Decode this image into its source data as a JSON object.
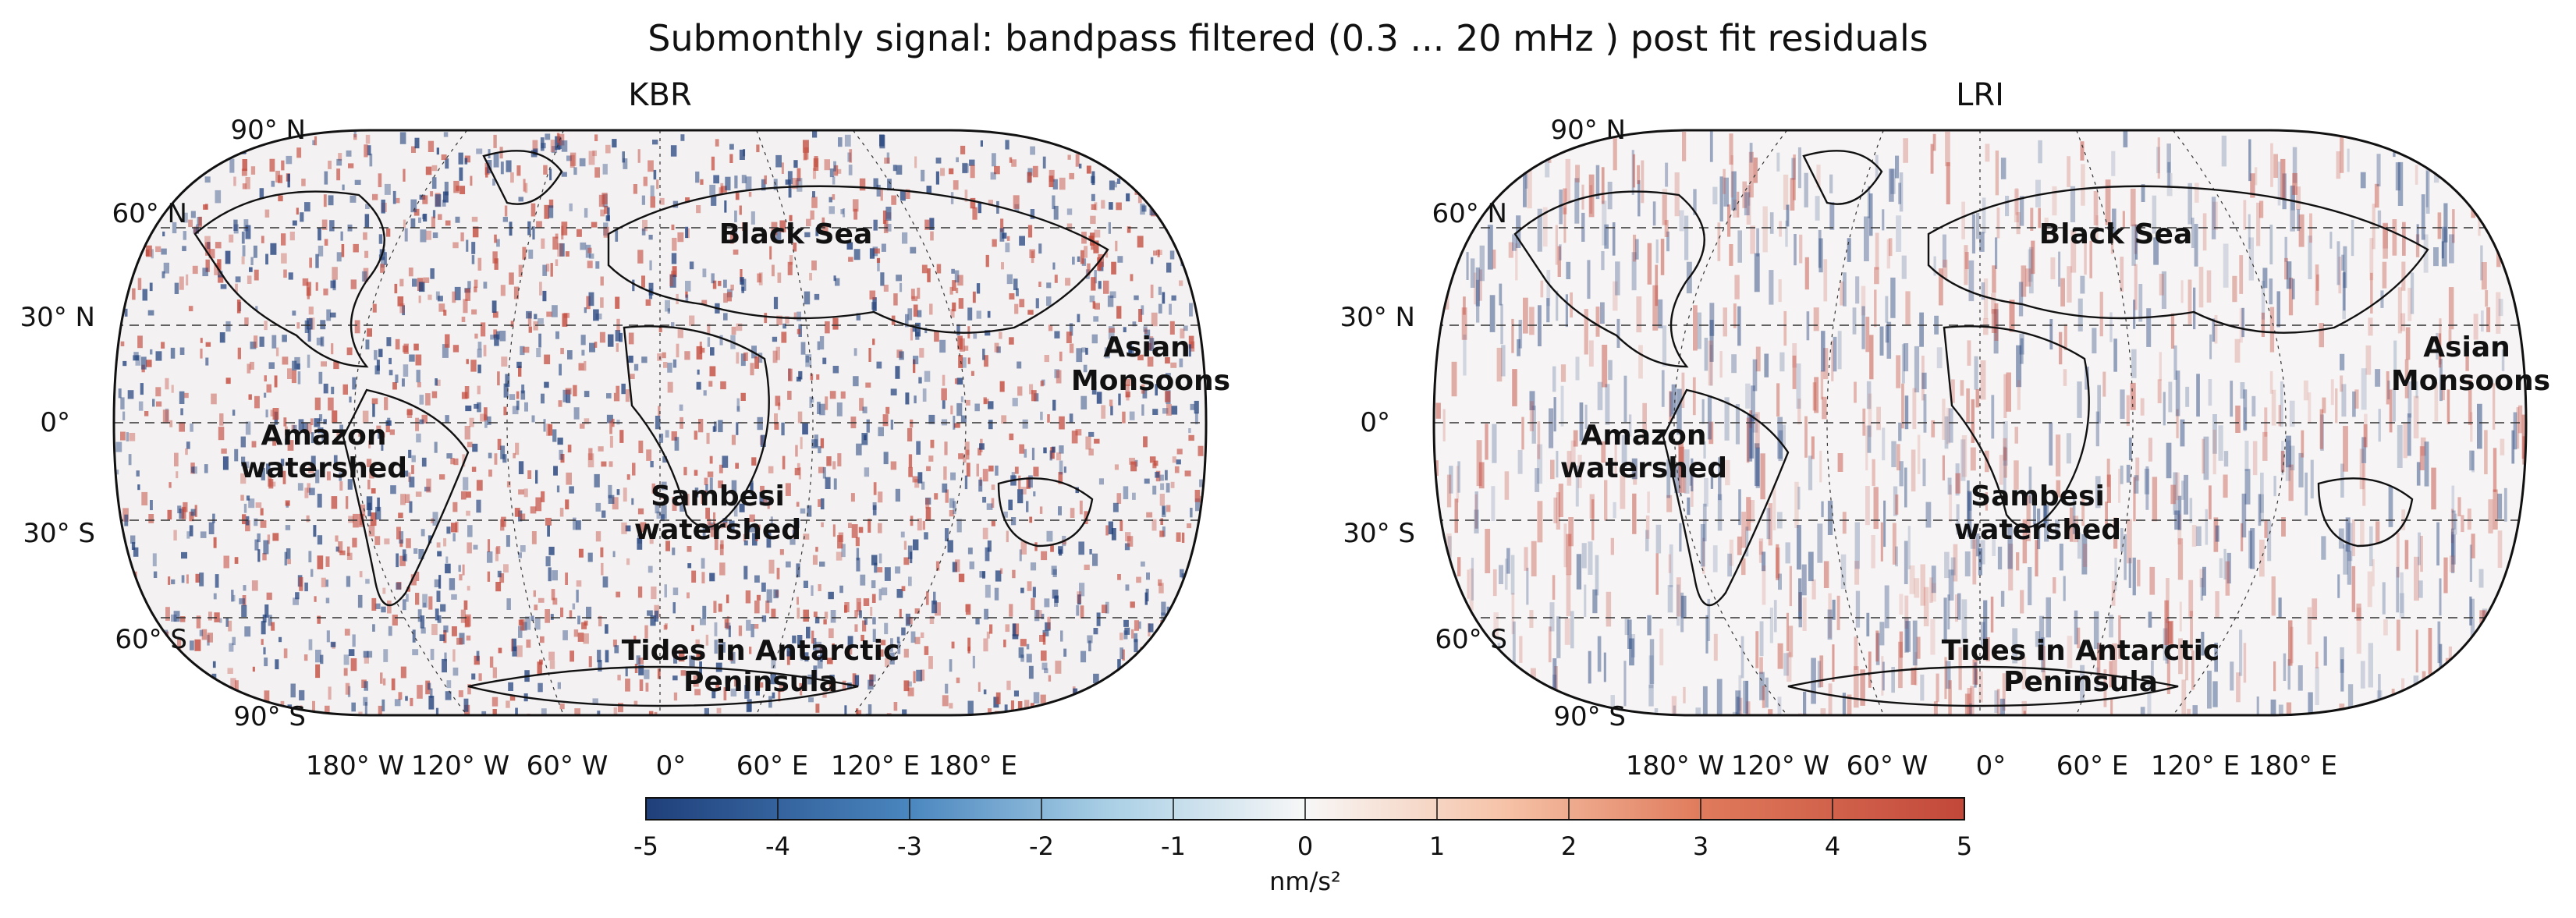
{
  "chart_data": {
    "type": "heatmap",
    "title": "Submonthly signal: bandpass filtered (0.3 ... 20 mHz ) post fit residuals",
    "projection": "Robinson",
    "panels": [
      {
        "name": "KBR",
        "annotations": [
          "Black Sea",
          "Asian Monsoons",
          "Amazon watershed",
          "Sambesi watershed",
          "Tides in Antarctic Peninsula"
        ]
      },
      {
        "name": "LRI",
        "annotations": [
          "Black Sea",
          "Asian Monsoons",
          "Amazon watershed",
          "Sambesi watershed",
          "Tides in Antarctic Peninsula"
        ]
      }
    ],
    "lat_ticks": [
      "90° N",
      "60° N",
      "30° N",
      "0°",
      "30° S",
      "60° S",
      "90° S"
    ],
    "lon_ticks": [
      "180° W",
      "120° W",
      "60° W",
      "0°",
      "60° E",
      "120° E",
      "180° E"
    ],
    "colorbar": {
      "label": "nm/s²",
      "range": [
        -5,
        5
      ],
      "ticks": [
        "-5",
        "-4",
        "-3",
        "-2",
        "-1",
        "0",
        "1",
        "2",
        "3",
        "4",
        "5"
      ],
      "colormap": "RdBu_r",
      "colors": {
        "negative": "#1f3f7a",
        "neutral": "#f7f7f7",
        "positive": "#c2483a"
      }
    }
  }
}
